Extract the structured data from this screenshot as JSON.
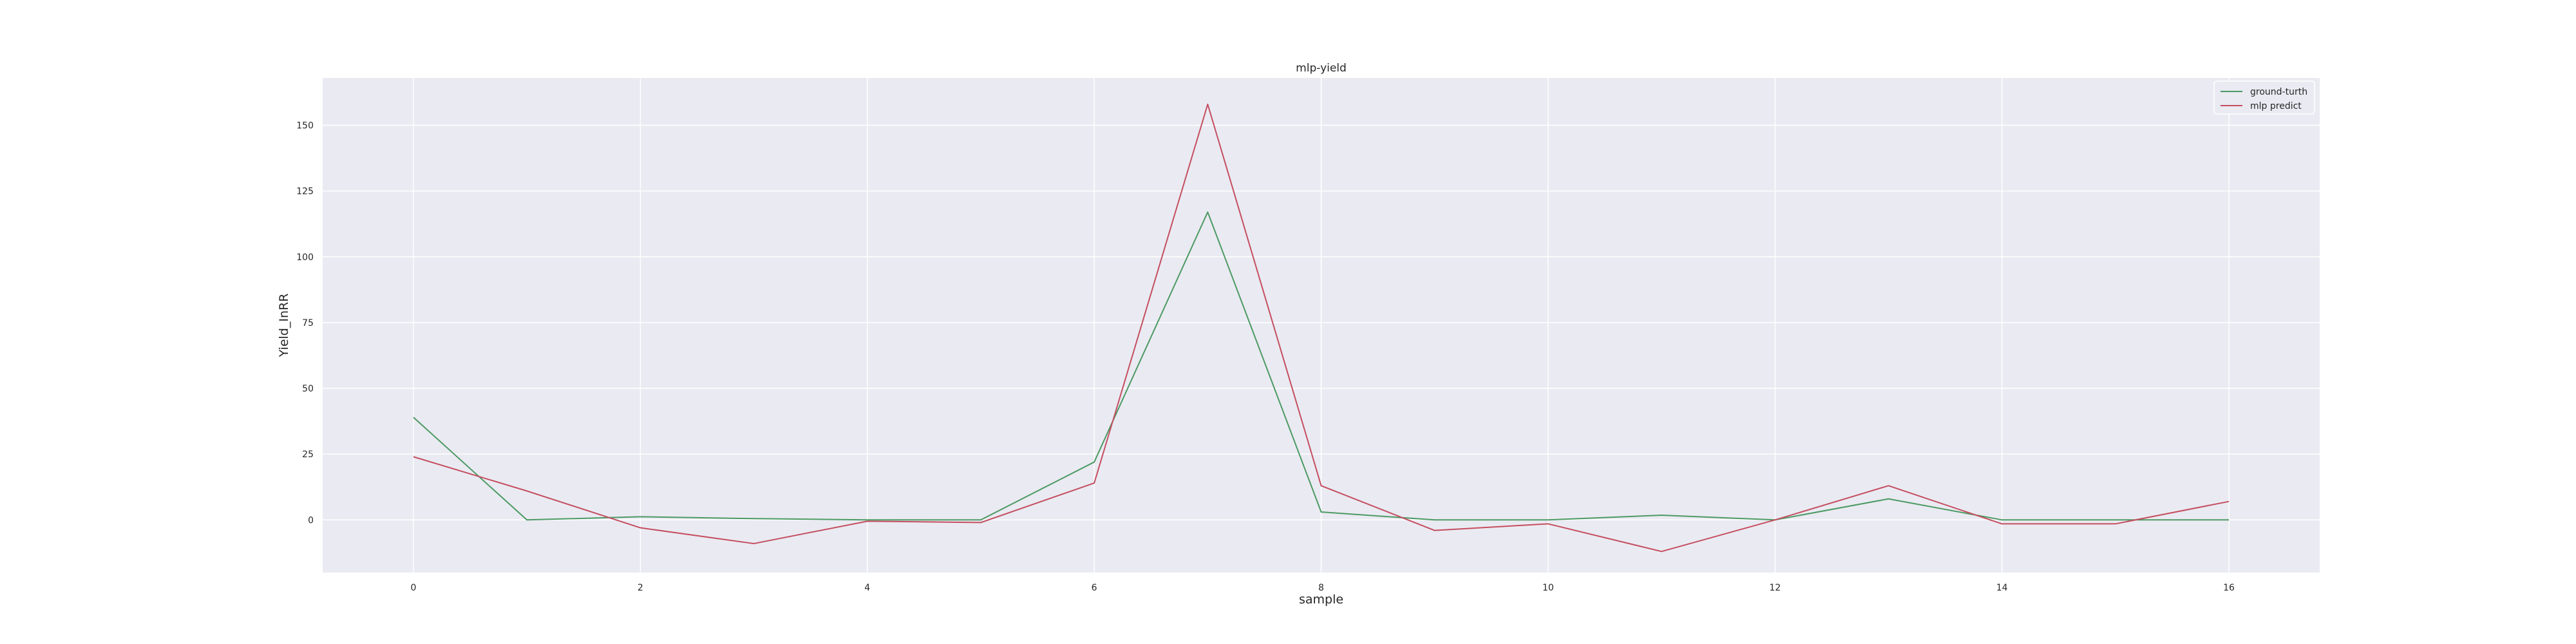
{
  "chart_data": {
    "type": "line",
    "title": "mlp-yield",
    "xlabel": "sample",
    "ylabel": "Yield_InRR",
    "x": [
      0,
      1,
      2,
      3,
      4,
      5,
      6,
      7,
      8,
      9,
      10,
      11,
      12,
      13,
      14,
      15,
      16
    ],
    "xticks": [
      0,
      2,
      4,
      6,
      8,
      10,
      12,
      14,
      16
    ],
    "yticks": [
      0,
      25,
      50,
      75,
      100,
      125,
      150
    ],
    "xlim": [
      -0.8,
      16.8
    ],
    "ylim": [
      -20,
      168
    ],
    "grid": true,
    "legend_position": "upper right",
    "background_color": "#eaeaf2",
    "grid_color": "#ffffff",
    "series": [
      {
        "name": "ground-turth",
        "color": "#4c9a63",
        "values": [
          39,
          0,
          1.2,
          0.5,
          0,
          0,
          22,
          117,
          3,
          0,
          0,
          1.8,
          0,
          8,
          0,
          0,
          0
        ]
      },
      {
        "name": "mlp predict",
        "color": "#c44e5f",
        "values": [
          24,
          11,
          -3,
          -9,
          -0.5,
          -1,
          14,
          158,
          13,
          -4,
          -1.5,
          -12,
          0,
          13,
          -1.5,
          -1.5,
          7
        ]
      }
    ]
  }
}
